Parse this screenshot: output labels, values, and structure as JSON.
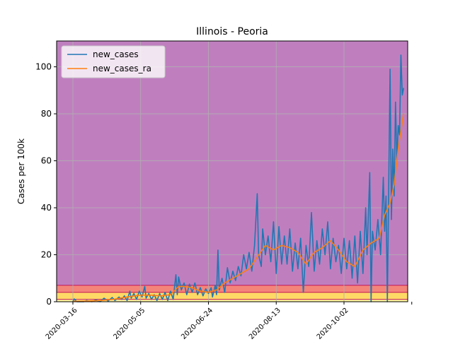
{
  "chart_data": {
    "type": "line",
    "title": "Illinois - Peoria",
    "xlabel": "",
    "ylabel": "Cases per 100k",
    "x_axis": {
      "type": "date",
      "range": [
        "2020-03-04",
        "2020-11-18"
      ],
      "ticks": [
        "2020-03-16",
        "2020-05-05",
        "2020-06-24",
        "2020-08-13",
        "2020-10-02",
        "2020-11-21"
      ],
      "tick_labels": [
        "2020-03-16",
        "2020-05-05",
        "2020-06-24",
        "2020-08-13",
        "2020-10-02",
        ""
      ]
    },
    "y_axis": {
      "range": [
        0,
        111
      ],
      "ticks": [
        0,
        20,
        40,
        60,
        80,
        100
      ],
      "tick_labels": [
        "0",
        "20",
        "40",
        "60",
        "80",
        "100"
      ]
    },
    "grid": true,
    "legend_position": "top-left",
    "legend": [
      "new_cases",
      "new_cases_ra"
    ],
    "background_bands": [
      {
        "y_from": 0,
        "y_to": 1,
        "color": "#fff59d"
      },
      {
        "y_from": 1,
        "y_to": 4,
        "color": "#ffd966"
      },
      {
        "y_from": 4,
        "y_to": 7,
        "color": "#f4847a"
      },
      {
        "y_from": 7,
        "y_to": 111,
        "color": "#bf7fbf"
      }
    ],
    "band_edge_color": "#c2185b",
    "series": [
      {
        "name": "new_cases",
        "color": "#1f77b4",
        "points": [
          [
            "2020-03-16",
            0
          ],
          [
            "2020-03-17",
            1.2
          ],
          [
            "2020-03-19",
            0
          ],
          [
            "2020-03-24",
            0
          ],
          [
            "2020-03-26",
            0.5
          ],
          [
            "2020-03-30",
            0
          ],
          [
            "2020-04-02",
            0.8
          ],
          [
            "2020-04-05",
            0
          ],
          [
            "2020-04-08",
            1.5
          ],
          [
            "2020-04-11",
            0.3
          ],
          [
            "2020-04-14",
            1.8
          ],
          [
            "2020-04-16",
            0.5
          ],
          [
            "2020-04-19",
            2
          ],
          [
            "2020-04-21",
            1
          ],
          [
            "2020-04-23",
            2.5
          ],
          [
            "2020-04-25",
            0.5
          ],
          [
            "2020-04-27",
            4.5
          ],
          [
            "2020-04-28",
            1.5
          ],
          [
            "2020-04-30",
            3.5
          ],
          [
            "2020-05-02",
            1
          ],
          [
            "2020-05-04",
            4.5
          ],
          [
            "2020-05-06",
            2
          ],
          [
            "2020-05-08",
            6.5
          ],
          [
            "2020-05-09",
            1.5
          ],
          [
            "2020-05-11",
            3.5
          ],
          [
            "2020-05-13",
            1
          ],
          [
            "2020-05-15",
            3
          ],
          [
            "2020-05-17",
            0.5
          ],
          [
            "2020-05-19",
            3.5
          ],
          [
            "2020-05-21",
            1
          ],
          [
            "2020-05-23",
            4
          ],
          [
            "2020-05-25",
            0.5
          ],
          [
            "2020-05-27",
            4.5
          ],
          [
            "2020-05-29",
            1
          ],
          [
            "2020-05-31",
            11.5
          ],
          [
            "2020-06-01",
            3
          ],
          [
            "2020-06-02",
            10.5
          ],
          [
            "2020-06-04",
            5
          ],
          [
            "2020-06-06",
            8
          ],
          [
            "2020-06-08",
            3
          ],
          [
            "2020-06-10",
            7.5
          ],
          [
            "2020-06-12",
            4
          ],
          [
            "2020-06-14",
            8
          ],
          [
            "2020-06-16",
            3
          ],
          [
            "2020-06-18",
            6
          ],
          [
            "2020-06-20",
            2.5
          ],
          [
            "2020-06-22",
            5.5
          ],
          [
            "2020-06-24",
            3.5
          ],
          [
            "2020-06-26",
            6
          ],
          [
            "2020-06-27",
            2
          ],
          [
            "2020-06-29",
            7
          ],
          [
            "2020-06-30",
            3
          ],
          [
            "2020-07-01",
            22
          ],
          [
            "2020-07-02",
            5
          ],
          [
            "2020-07-04",
            10
          ],
          [
            "2020-07-06",
            4
          ],
          [
            "2020-07-08",
            14.5
          ],
          [
            "2020-07-10",
            8
          ],
          [
            "2020-07-12",
            13
          ],
          [
            "2020-07-14",
            9
          ],
          [
            "2020-07-16",
            15
          ],
          [
            "2020-07-18",
            11
          ],
          [
            "2020-07-20",
            20
          ],
          [
            "2020-07-22",
            14
          ],
          [
            "2020-07-24",
            21
          ],
          [
            "2020-07-26",
            13
          ],
          [
            "2020-07-28",
            24
          ],
          [
            "2020-07-30",
            46
          ],
          [
            "2020-07-31",
            20
          ],
          [
            "2020-08-02",
            15
          ],
          [
            "2020-08-03",
            31
          ],
          [
            "2020-08-05",
            20
          ],
          [
            "2020-08-07",
            28
          ],
          [
            "2020-08-09",
            17
          ],
          [
            "2020-08-11",
            34
          ],
          [
            "2020-08-13",
            12
          ],
          [
            "2020-08-15",
            32
          ],
          [
            "2020-08-17",
            16
          ],
          [
            "2020-08-19",
            28
          ],
          [
            "2020-08-21",
            16
          ],
          [
            "2020-08-23",
            31
          ],
          [
            "2020-08-25",
            13
          ],
          [
            "2020-08-27",
            25
          ],
          [
            "2020-08-29",
            14
          ],
          [
            "2020-08-31",
            27
          ],
          [
            "2020-09-02",
            4
          ],
          [
            "2020-09-04",
            24
          ],
          [
            "2020-09-06",
            15
          ],
          [
            "2020-09-08",
            38
          ],
          [
            "2020-09-10",
            13
          ],
          [
            "2020-09-12",
            26
          ],
          [
            "2020-09-14",
            16
          ],
          [
            "2020-09-16",
            31
          ],
          [
            "2020-09-18",
            20
          ],
          [
            "2020-09-20",
            34
          ],
          [
            "2020-09-22",
            14
          ],
          [
            "2020-09-24",
            27
          ],
          [
            "2020-09-26",
            17
          ],
          [
            "2020-09-28",
            24
          ],
          [
            "2020-09-30",
            12
          ],
          [
            "2020-10-02",
            27
          ],
          [
            "2020-10-04",
            14
          ],
          [
            "2020-10-06",
            26
          ],
          [
            "2020-10-08",
            10
          ],
          [
            "2020-10-10",
            28
          ],
          [
            "2020-10-12",
            8
          ],
          [
            "2020-10-14",
            30
          ],
          [
            "2020-10-16",
            12
          ],
          [
            "2020-10-18",
            40
          ],
          [
            "2020-10-19",
            20
          ],
          [
            "2020-10-21",
            55
          ],
          [
            "2020-10-22",
            0
          ],
          [
            "2020-10-23",
            30
          ],
          [
            "2020-10-25",
            22
          ],
          [
            "2020-10-27",
            35
          ],
          [
            "2020-10-29",
            20
          ],
          [
            "2020-10-31",
            53
          ],
          [
            "2020-11-01",
            30
          ],
          [
            "2020-11-02",
            45
          ],
          [
            "2020-11-03",
            0
          ],
          [
            "2020-11-05",
            99
          ],
          [
            "2020-11-06",
            35
          ],
          [
            "2020-11-07",
            65
          ],
          [
            "2020-11-08",
            45
          ],
          [
            "2020-11-09",
            85
          ],
          [
            "2020-11-10",
            60
          ],
          [
            "2020-11-11",
            75
          ],
          [
            "2020-11-12",
            71
          ],
          [
            "2020-11-13",
            105
          ],
          [
            "2020-11-14",
            88
          ],
          [
            "2020-11-15",
            91
          ]
        ]
      },
      {
        "name": "new_cases_ra",
        "color": "#ff7f0e",
        "points": [
          [
            "2020-03-16",
            0.2
          ],
          [
            "2020-03-25",
            0.3
          ],
          [
            "2020-04-05",
            0.5
          ],
          [
            "2020-04-15",
            1
          ],
          [
            "2020-04-25",
            2
          ],
          [
            "2020-05-04",
            2.8
          ],
          [
            "2020-05-12",
            2.8
          ],
          [
            "2020-05-20",
            2.5
          ],
          [
            "2020-05-27",
            3
          ],
          [
            "2020-06-02",
            6.5
          ],
          [
            "2020-06-06",
            6.5
          ],
          [
            "2020-06-12",
            6
          ],
          [
            "2020-06-18",
            4.5
          ],
          [
            "2020-06-24",
            4
          ],
          [
            "2020-06-30",
            5
          ],
          [
            "2020-07-06",
            8
          ],
          [
            "2020-07-12",
            10
          ],
          [
            "2020-07-18",
            12
          ],
          [
            "2020-07-24",
            14
          ],
          [
            "2020-07-30",
            19
          ],
          [
            "2020-08-05",
            24
          ],
          [
            "2020-08-11",
            22
          ],
          [
            "2020-08-17",
            24
          ],
          [
            "2020-08-23",
            23
          ],
          [
            "2020-08-29",
            21
          ],
          [
            "2020-09-04",
            16
          ],
          [
            "2020-09-10",
            21
          ],
          [
            "2020-09-16",
            23
          ],
          [
            "2020-09-22",
            26
          ],
          [
            "2020-09-28",
            22
          ],
          [
            "2020-10-04",
            17
          ],
          [
            "2020-10-10",
            15
          ],
          [
            "2020-10-16",
            22
          ],
          [
            "2020-10-22",
            25
          ],
          [
            "2020-10-28",
            27
          ],
          [
            "2020-11-01",
            37
          ],
          [
            "2020-11-05",
            42
          ],
          [
            "2020-11-08",
            50
          ],
          [
            "2020-11-11",
            65
          ],
          [
            "2020-11-15",
            80
          ]
        ]
      }
    ]
  }
}
